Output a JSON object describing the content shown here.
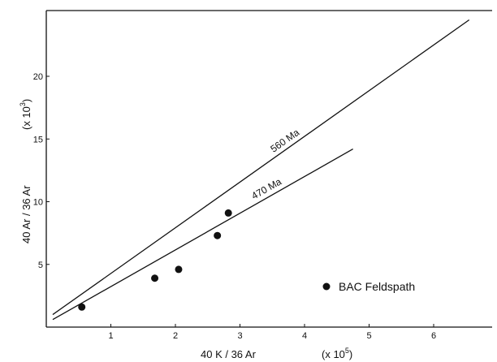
{
  "chart_data": {
    "type": "scatter",
    "xlabel": "40 K / 36 Ar",
    "xlabel_unit": "(x 10",
    "xlabel_exp": "5",
    "ylabel": "40 Ar / 36 Ar",
    "ylabel_unit": "(x 10",
    "ylabel_exp": "3",
    "xlim": [
      0,
      7
    ],
    "ylim": [
      0,
      25
    ],
    "x_ticks": [
      "1",
      "2",
      "3",
      "4",
      "5",
      "6"
    ],
    "y_ticks": [
      "5",
      "10",
      "15",
      "20"
    ],
    "grid": false,
    "series": [
      {
        "name": "BAC Feldspath",
        "points": [
          {
            "x": 0.55,
            "y": 1.6
          },
          {
            "x": 1.68,
            "y": 3.9
          },
          {
            "x": 2.05,
            "y": 4.6
          },
          {
            "x": 2.65,
            "y": 7.3
          },
          {
            "x": 2.82,
            "y": 9.1
          }
        ]
      }
    ],
    "reference_lines": [
      {
        "label": "560 Ma",
        "x": [
          0.1,
          6.55
        ],
        "y": [
          1.0,
          24.5
        ]
      },
      {
        "label": "470 Ma",
        "x": [
          0.1,
          4.75
        ],
        "y": [
          0.6,
          14.2
        ]
      }
    ],
    "legend": {
      "position": "bottom-right",
      "text": "BAC   Feldspath"
    }
  }
}
